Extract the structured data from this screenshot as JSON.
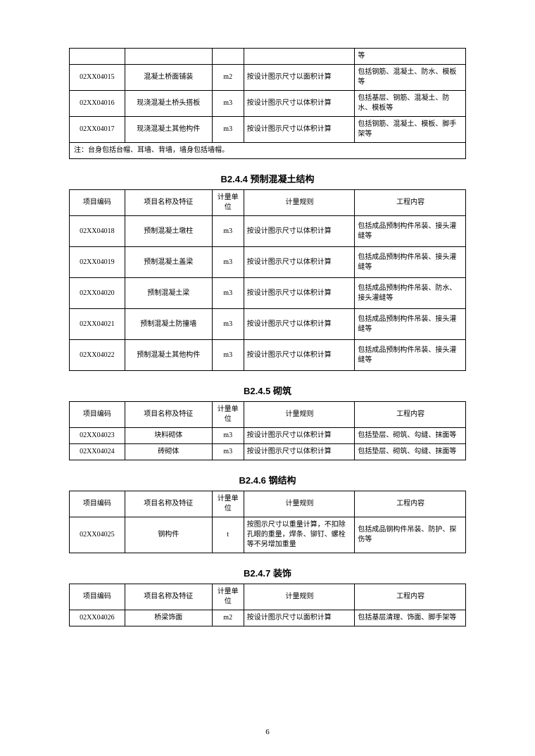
{
  "page_number": "6",
  "table_top": {
    "rows": [
      {
        "c1": "",
        "c2": "",
        "c3": "",
        "c4": "",
        "c5": "等"
      },
      {
        "c1": "02XX04015",
        "c2": "混凝土桥面铺装",
        "c3": "m2",
        "c4": "按设计图示尺寸以面积计算",
        "c5": "包括钢筋、混凝土、防水、模板等"
      },
      {
        "c1": "02XX04016",
        "c2": "现浇混凝土桥头搭板",
        "c3": "m3",
        "c4": "按设计图示尺寸以体积计算",
        "c5": "包括基层、钢筋、混凝土、防水、模板等"
      },
      {
        "c1": "02XX04017",
        "c2": "现浇混凝土其他构件",
        "c3": "m3",
        "c4": "按设计图示尺寸以体积计算",
        "c5": "包括钢筋、混凝土、模板、脚手架等"
      }
    ],
    "note": "注：台身包括台帽、耳墙、背墙，墙身包括墙帽。"
  },
  "sec244": {
    "title": "B2.4.4  预制混凝土结构",
    "header": {
      "h1": "项目编码",
      "h2": "项目名称及特征",
      "h3": "计量单位",
      "h4": "计量规则",
      "h5": "工程内容"
    },
    "rows": [
      {
        "c1": "02XX04018",
        "c2": "预制混凝土墩柱",
        "c3": "m3",
        "c4": "按设计图示尺寸以体积计算",
        "c5": "包括成品预制构件吊装、接头灌缝等"
      },
      {
        "c1": "02XX04019",
        "c2": "预制混凝土盖梁",
        "c3": "m3",
        "c4": "按设计图示尺寸以体积计算",
        "c5": "包括成品预制构件吊装、接头灌缝等"
      },
      {
        "c1": "02XX04020",
        "c2": "预制混凝土梁",
        "c3": "m3",
        "c4": "按设计图示尺寸以体积计算",
        "c5": "包括成品预制构件吊装、防水、接头灌缝等"
      },
      {
        "c1": "02XX04021",
        "c2": "预制混凝土防撞墙",
        "c3": "m3",
        "c4": "按设计图示尺寸以体积计算",
        "c5": "包括成品预制构件吊装、接头灌缝等"
      },
      {
        "c1": "02XX04022",
        "c2": "预制混凝土其他构件",
        "c3": "m3",
        "c4": "按设计图示尺寸以体积计算",
        "c5": "包括成品预制构件吊装、接头灌缝等"
      }
    ]
  },
  "sec245": {
    "title": "B2.4.5  砌筑",
    "header": {
      "h1": "项目编码",
      "h2": "项目名称及特征",
      "h3": "计量单位",
      "h4": "计量规则",
      "h5": "工程内容"
    },
    "rows": [
      {
        "c1": "02XX04023",
        "c2": "块料砌体",
        "c3": "m3",
        "c4": "按设计图示尺寸以体积计算",
        "c5": "包括垫层、砌筑、勾缝、抹面等"
      },
      {
        "c1": "02XX04024",
        "c2": "砖砌体",
        "c3": "m3",
        "c4": "按设计图示尺寸以体积计算",
        "c5": "包括垫层、砌筑、勾缝、抹面等"
      }
    ]
  },
  "sec246": {
    "title": "B2.4.6  钢结构",
    "header": {
      "h1": "项目编码",
      "h2": "项目名称及特征",
      "h3": "计量单位",
      "h4": "计量规则",
      "h5": "工程内容"
    },
    "rows": [
      {
        "c1": "02XX04025",
        "c2": "钢构件",
        "c3": "t",
        "c4": "按图示尺寸以重量计算，不扣除孔眼的重量，焊条、铆钉、螺栓等不另增加重量",
        "c5": "包括成品钢构件吊装、防护、探伤等"
      }
    ]
  },
  "sec247": {
    "title": "B2.4.7  装饰",
    "header": {
      "h1": "项目编码",
      "h2": "项目名称及特征",
      "h3": "计量单位",
      "h4": "计量规则",
      "h5": "工程内容"
    },
    "rows": [
      {
        "c1": "02XX04026",
        "c2": "桥梁饰面",
        "c3": "m2",
        "c4": "按设计图示尺寸以面积计算",
        "c5": "包括基层清理、饰面、脚手架等"
      }
    ]
  }
}
